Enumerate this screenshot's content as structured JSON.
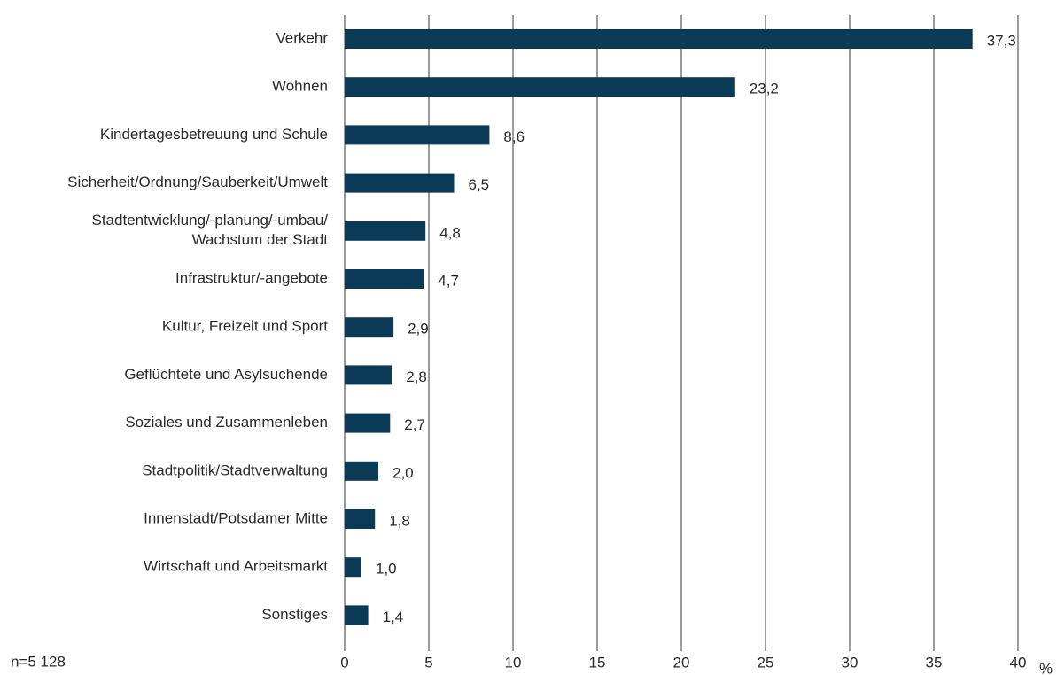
{
  "chart_data": {
    "type": "bar",
    "orientation": "horizontal",
    "categories": [
      "Verkehr",
      "Wohnen",
      "Kindertagesbetreuung und Schule",
      "Sicherheit/Ordnung/Sauberkeit/Umwelt",
      "Stadtentwicklung/-planung/-umbau/\nWachstum der Stadt",
      "Infrastruktur/-angebote",
      "Kultur, Freizeit und Sport",
      "Geflüchtete und Asylsuchende",
      "Soziales und Zusammenleben",
      "Stadtpolitik/Stadtverwaltung",
      "Innenstadt/Potsdamer Mitte",
      "Wirtschaft und Arbeitsmarkt",
      "Sonstiges"
    ],
    "values": [
      37.3,
      23.2,
      8.6,
      6.5,
      4.8,
      4.7,
      2.9,
      2.8,
      2.7,
      2.0,
      1.8,
      1.0,
      1.4
    ],
    "value_labels": [
      "37,3",
      "23,2",
      "8,6",
      "6,5",
      "4,8",
      "4,7",
      "2,9",
      "2,8",
      "2,7",
      "2,0",
      "1,8",
      "1,0",
      "1,4"
    ],
    "color": "#0b3a57",
    "xlim": [
      0,
      40
    ],
    "xticks": [
      0,
      5,
      10,
      15,
      20,
      25,
      30,
      35,
      40
    ],
    "grid": true,
    "x_unit_label": "%",
    "annotation": "n=5 128"
  }
}
